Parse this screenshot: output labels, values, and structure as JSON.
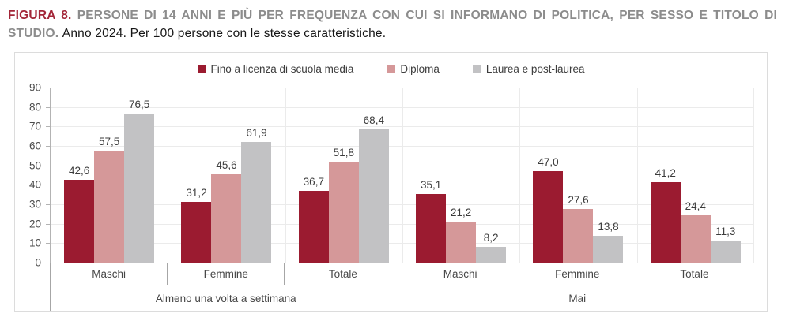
{
  "header": {
    "figure_label": "FIGURA 8.",
    "title": "PERSONE DI 14 ANNI E PIÙ PER FREQUENZA CON CUI SI INFORMANO DI POLITICA, PER SESSO E TITOLO DI STUDIO.",
    "subtitle": "Anno 2024. Per 100 persone con le stesse caratteristiche."
  },
  "colors": {
    "figure_label_red": "#a32638",
    "title_gray": "#8c8c8c",
    "series_scuola_media": "#9b1b30",
    "series_diploma": "#d59899",
    "series_laurea": "#c2c2c4",
    "axis_line": "#a6a6a6",
    "grid_line": "#ebebeb",
    "panel_border": "#dcdcdc",
    "value_text": "#3b3b3b"
  },
  "chart_data": {
    "type": "bar",
    "title": "",
    "xlabel": "",
    "ylabel": "",
    "ylim": [
      0,
      90
    ],
    "yticks": [
      0,
      10,
      20,
      30,
      40,
      50,
      60,
      70,
      80,
      90
    ],
    "grid": true,
    "legend_position": "top-center",
    "decimal_separator": ",",
    "groups": [
      {
        "label": "Almeno una volta a settimana",
        "categories": [
          "Maschi",
          "Femmine",
          "Totale"
        ]
      },
      {
        "label": "Mai",
        "categories": [
          "Maschi",
          "Femmine",
          "Totale"
        ]
      }
    ],
    "categories": [
      "Maschi",
      "Femmine",
      "Totale",
      "Maschi",
      "Femmine",
      "Totale"
    ],
    "series": [
      {
        "name": "Fino a licenza di scuola media",
        "color": "#9b1b30",
        "values": [
          42.6,
          31.2,
          36.7,
          35.1,
          47.0,
          41.2
        ],
        "labels": [
          "42,6",
          "31,2",
          "36,7",
          "35,1",
          "47,0",
          "41,2"
        ]
      },
      {
        "name": "Diploma",
        "color": "#d59899",
        "values": [
          57.5,
          45.6,
          51.8,
          21.2,
          27.6,
          24.4
        ],
        "labels": [
          "57,5",
          "45,6",
          "51,8",
          "21,2",
          "27,6",
          "24,4"
        ]
      },
      {
        "name": "Laurea e post-laurea",
        "color": "#c2c2c4",
        "values": [
          76.5,
          61.9,
          68.4,
          8.2,
          13.8,
          11.3
        ],
        "labels": [
          "76,5",
          "61,9",
          "68,4",
          "8,2",
          "13,8",
          "11,3"
        ]
      }
    ]
  }
}
